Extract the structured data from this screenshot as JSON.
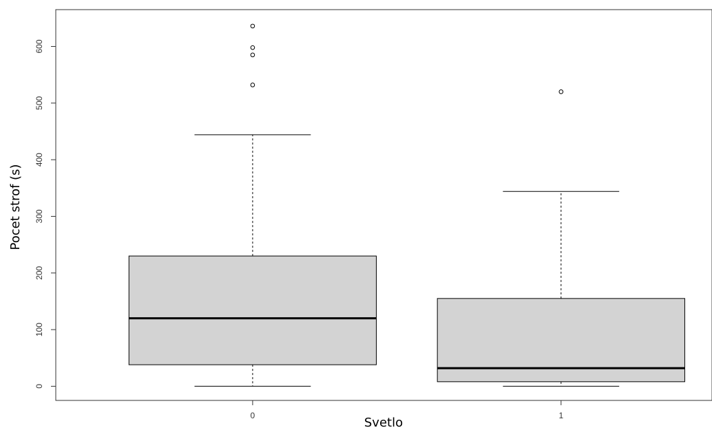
{
  "chart_data": {
    "type": "box",
    "xlabel": "Svetlo",
    "ylabel": "Pocet strof (s)",
    "categories": [
      "0",
      "1"
    ],
    "ylim": [
      -25,
      665
    ],
    "yticks": [
      0,
      100,
      200,
      300,
      400,
      500,
      600
    ],
    "grid": false,
    "colors": {
      "box_fill": "#d3d3d3",
      "stroke": "#000000",
      "frame": "#333333"
    },
    "boxes": [
      {
        "category": "0",
        "min": 0,
        "q1": 38,
        "median": 120,
        "q3": 230,
        "max": 444,
        "outliers": [
          532,
          585,
          598,
          636
        ]
      },
      {
        "category": "1",
        "min": 0,
        "q1": 8,
        "median": 32,
        "q3": 155,
        "max": 344,
        "outliers": [
          520
        ]
      }
    ]
  }
}
